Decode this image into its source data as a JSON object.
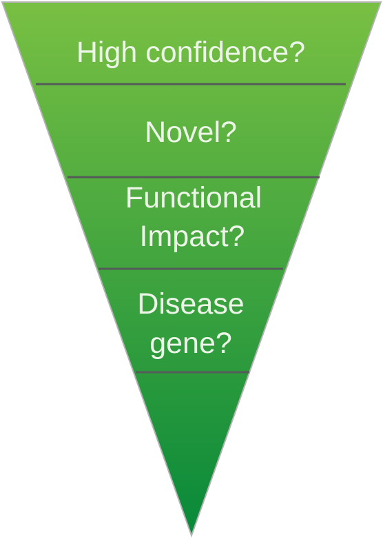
{
  "diagram": {
    "type": "inverted-triangle-funnel",
    "stages": [
      {
        "lines": [
          "High confidence?"
        ]
      },
      {
        "lines": [
          "Novel?"
        ]
      },
      {
        "lines": [
          "Functional",
          "Impact?"
        ]
      },
      {
        "lines": [
          "Disease",
          "gene?"
        ]
      }
    ],
    "colors": {
      "fill_top": "#79c043",
      "fill_bottom": "#08893a",
      "outline": "#b3b3b3",
      "divider": "#555b58",
      "text": "#ecf5e8"
    }
  }
}
